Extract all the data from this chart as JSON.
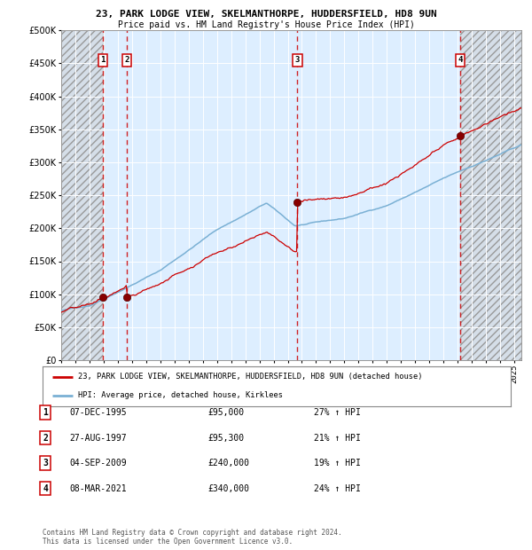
{
  "title1": "23, PARK LODGE VIEW, SKELMANTHORPE, HUDDERSFIELD, HD8 9UN",
  "title2": "Price paid vs. HM Land Registry's House Price Index (HPI)",
  "property_label": "23, PARK LODGE VIEW, SKELMANTHORPE, HUDDERSFIELD, HD8 9UN (detached house)",
  "hpi_label": "HPI: Average price, detached house, Kirklees",
  "sales": [
    {
      "num": 1,
      "date": "07-DEC-1995",
      "year": 1995.93,
      "price": 95000,
      "pct": "27% ↑ HPI"
    },
    {
      "num": 2,
      "date": "27-AUG-1997",
      "year": 1997.65,
      "price": 95300,
      "pct": "21% ↑ HPI"
    },
    {
      "num": 3,
      "date": "04-SEP-2009",
      "year": 2009.68,
      "price": 240000,
      "pct": "19% ↑ HPI"
    },
    {
      "num": 4,
      "date": "08-MAR-2021",
      "year": 2021.18,
      "price": 340000,
      "pct": "24% ↑ HPI"
    }
  ],
  "ylim": [
    0,
    500000
  ],
  "yticks": [
    0,
    50000,
    100000,
    150000,
    200000,
    250000,
    300000,
    350000,
    400000,
    450000,
    500000
  ],
  "xlim": [
    1993.0,
    2025.5
  ],
  "xticks": [
    1993,
    1994,
    1995,
    1996,
    1997,
    1998,
    1999,
    2000,
    2001,
    2002,
    2003,
    2004,
    2005,
    2006,
    2007,
    2008,
    2009,
    2010,
    2011,
    2012,
    2013,
    2014,
    2015,
    2016,
    2017,
    2018,
    2019,
    2020,
    2021,
    2022,
    2023,
    2024,
    2025
  ],
  "property_color": "#cc0000",
  "hpi_color": "#7ab0d4",
  "background_chart": "#ddeeff",
  "grid_color": "#ffffff",
  "dashed_color": "#cc0000",
  "sale_years": [
    1995.93,
    1997.65,
    2009.68,
    2021.18
  ],
  "sale_prices": [
    95000,
    95300,
    240000,
    340000
  ],
  "footer": "Contains HM Land Registry data © Crown copyright and database right 2024.\nThis data is licensed under the Open Government Licence v3.0."
}
